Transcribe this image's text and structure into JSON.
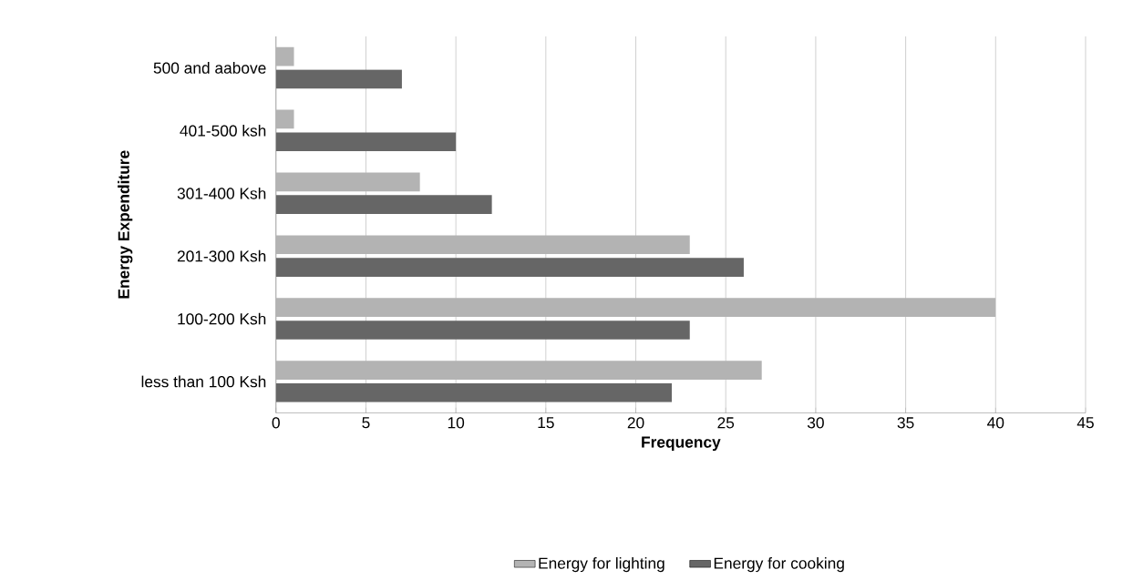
{
  "chart_data": {
    "type": "bar",
    "orientation": "horizontal",
    "categories": [
      "500 and aabove",
      "401-500 ksh",
      "301-400 Ksh",
      "201-300 Ksh",
      "100-200 Ksh",
      "less than 100 Ksh"
    ],
    "series": [
      {
        "name": "Energy for lighting",
        "color": "#b3b3b3",
        "values": [
          1,
          1,
          8,
          23,
          40,
          27
        ]
      },
      {
        "name": "Energy for cooking",
        "color": "#666666",
        "values": [
          7,
          10,
          12,
          26,
          23,
          22
        ]
      }
    ],
    "xlabel": "Frequency",
    "ylabel": "Energy Expenditure",
    "xlim": [
      0,
      45
    ],
    "xticks": [
      0,
      5,
      10,
      15,
      20,
      25,
      30,
      35,
      40,
      45
    ],
    "grid": "x",
    "legend": "bottom"
  }
}
